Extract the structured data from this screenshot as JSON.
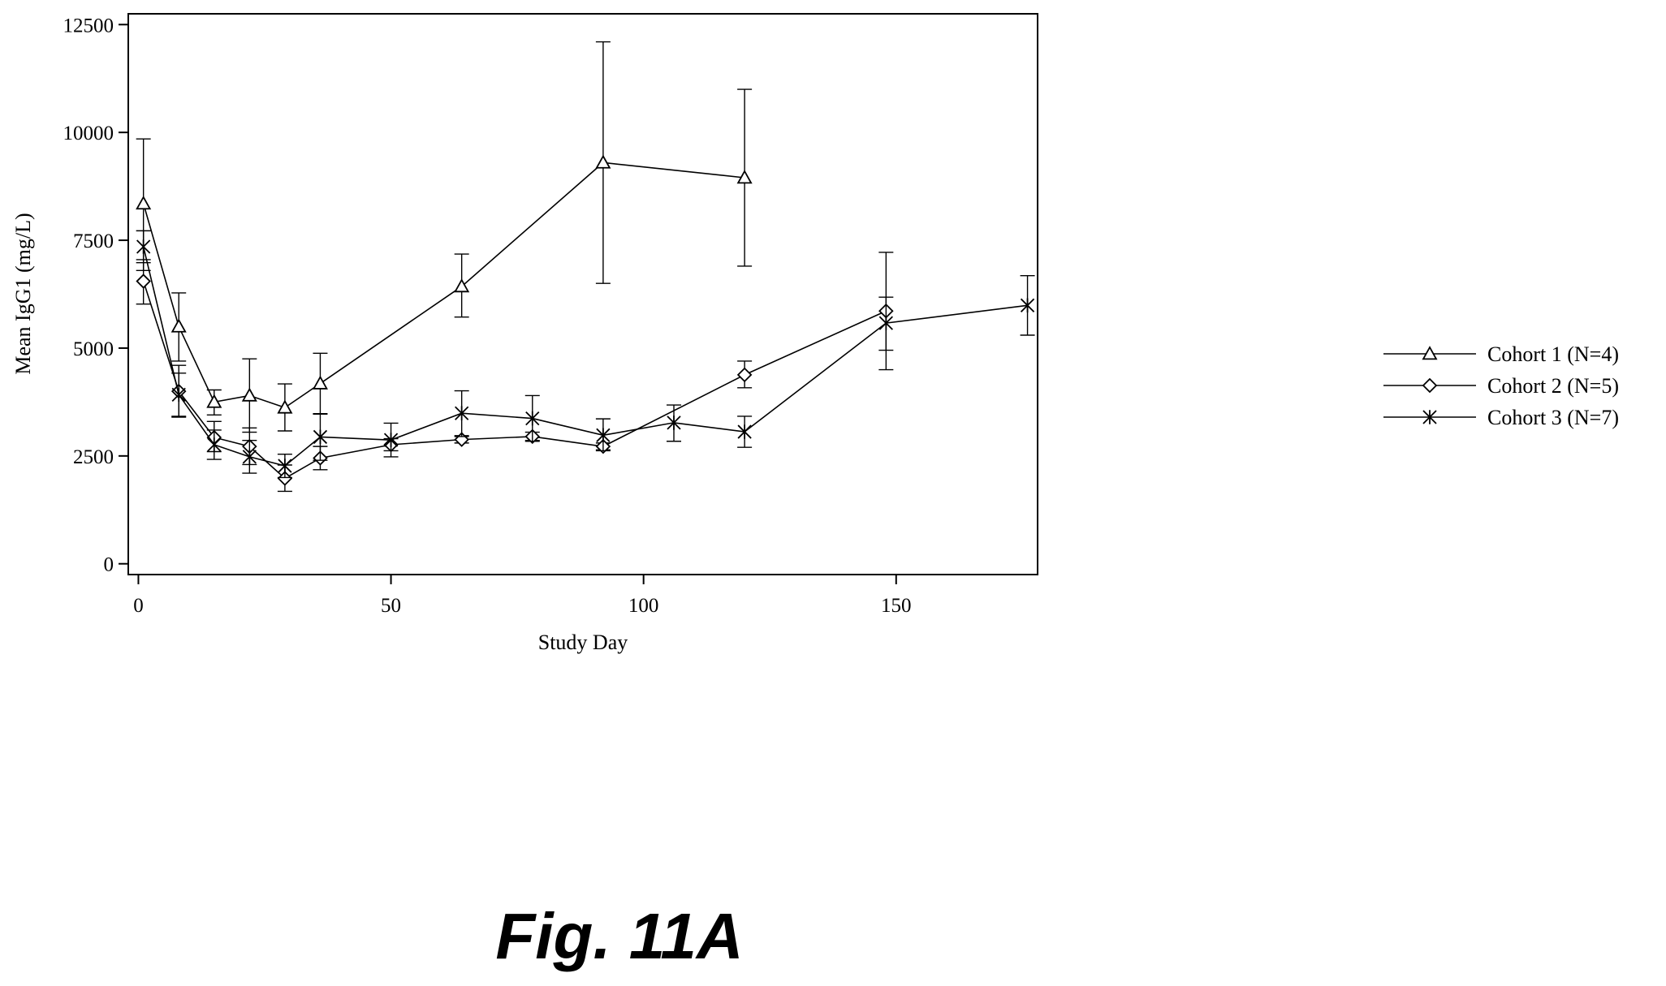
{
  "figure_caption": "Fig. 11A",
  "chart_data": {
    "type": "line",
    "title": "",
    "xlabel": "Study Day",
    "ylabel": "Mean IgG1 (mg/L)",
    "xlim": [
      -2,
      178
    ],
    "ylim": [
      -250,
      12750
    ],
    "x_ticks": [
      0,
      50,
      100,
      150
    ],
    "y_ticks": [
      0,
      2500,
      5000,
      7500,
      10000,
      12500
    ],
    "grid": false,
    "legend_position": "right",
    "series": [
      {
        "name": "Cohort 1 (N=4)",
        "marker": "triangle",
        "x": [
          1,
          8,
          15,
          22,
          29,
          36,
          64,
          92,
          120
        ],
        "y": [
          8350,
          5500,
          3750,
          3900,
          3620,
          4180,
          6430,
          9300,
          8950
        ],
        "err_low": [
          6800,
          4700,
          3450,
          3050,
          3080,
          3480,
          5720,
          6500,
          6900
        ],
        "err_high": [
          9850,
          6280,
          4030,
          4750,
          4170,
          4880,
          7180,
          12100,
          11000
        ]
      },
      {
        "name": "Cohort 2 (N=5)",
        "marker": "diamond",
        "x": [
          1,
          8,
          15,
          22,
          29,
          36,
          50,
          64,
          78,
          92,
          120,
          148
        ],
        "y": [
          6550,
          4000,
          2930,
          2720,
          1980,
          2450,
          2760,
          2880,
          2950,
          2720,
          4380,
          5860
        ],
        "err_low": [
          6020,
          3400,
          2600,
          2300,
          1680,
          2180,
          2620,
          2800,
          2860,
          2640,
          4080,
          4500
        ],
        "err_high": [
          7050,
          4600,
          3300,
          3150,
          2290,
          2720,
          2900,
          2970,
          3050,
          2800,
          4700,
          7220
        ]
      },
      {
        "name": "Cohort 3 (N=7)",
        "marker": "asterisk",
        "x": [
          1,
          8,
          15,
          22,
          29,
          36,
          50,
          64,
          78,
          92,
          106,
          120,
          148,
          176
        ],
        "y": [
          7350,
          3920,
          2760,
          2480,
          2270,
          2940,
          2870,
          3490,
          3370,
          2980,
          3270,
          3060,
          5580,
          5990
        ],
        "err_low": [
          6980,
          3420,
          2420,
          2100,
          2000,
          2400,
          2480,
          2950,
          2840,
          2620,
          2840,
          2700,
          4950,
          5300
        ],
        "err_high": [
          7720,
          4420,
          3100,
          2860,
          2540,
          3470,
          3260,
          4010,
          3900,
          3360,
          3680,
          3420,
          6180,
          6680
        ]
      }
    ]
  }
}
